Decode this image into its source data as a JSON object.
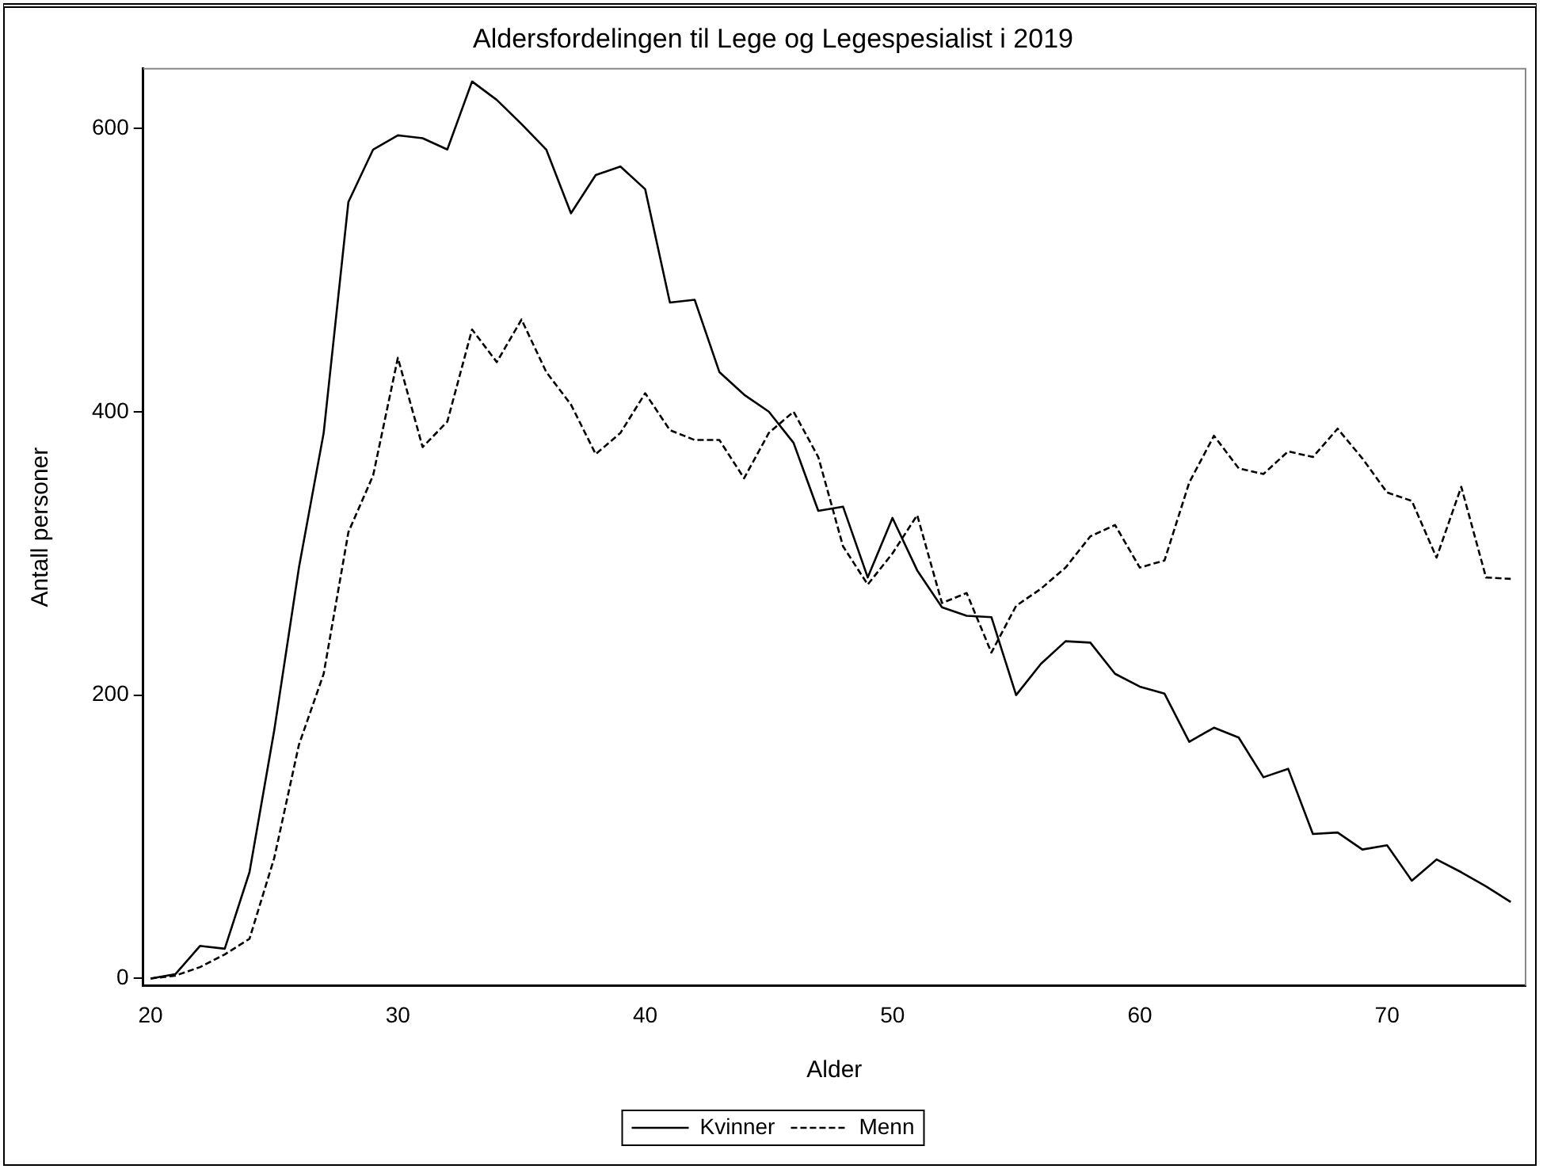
{
  "chart_data": {
    "type": "line",
    "title": "Aldersfordelingen til Lege og Legespesialist i 2019",
    "xlabel": "Alder",
    "ylabel": "Antall personer",
    "x": [
      20,
      21,
      22,
      23,
      24,
      25,
      26,
      27,
      28,
      29,
      30,
      31,
      32,
      33,
      34,
      35,
      36,
      37,
      38,
      39,
      40,
      41,
      42,
      43,
      44,
      45,
      46,
      47,
      48,
      49,
      50,
      51,
      52,
      53,
      54,
      55,
      56,
      57,
      58,
      59,
      60,
      61,
      62,
      63,
      64,
      65,
      66,
      67,
      68,
      69,
      70,
      71,
      72,
      73,
      74,
      75
    ],
    "series": [
      {
        "name": "Kvinner",
        "color": "#000000",
        "line_style": "solid",
        "values": [
          0,
          3,
          23,
          21,
          75,
          175,
          290,
          385,
          548,
          585,
          595,
          593,
          585,
          633,
          620,
          603,
          585,
          540,
          567,
          573,
          557,
          477,
          479,
          428,
          412,
          400,
          378,
          330,
          333,
          283,
          325,
          288,
          262,
          256,
          255,
          200,
          222,
          238,
          237,
          215,
          206,
          201,
          167,
          177,
          170,
          142,
          148,
          102,
          103,
          91,
          94,
          69,
          84,
          75,
          65,
          54
        ]
      },
      {
        "name": "Menn",
        "color": "#000000",
        "line_style": "dashed",
        "values": [
          0,
          2,
          8,
          17,
          28,
          85,
          165,
          215,
          315,
          355,
          438,
          375,
          393,
          458,
          435,
          465,
          428,
          405,
          370,
          385,
          413,
          387,
          380,
          380,
          353,
          385,
          400,
          368,
          305,
          278,
          300,
          327,
          265,
          272,
          230,
          263,
          275,
          290,
          312,
          320,
          290,
          295,
          350,
          383,
          360,
          356,
          372,
          368,
          388,
          367,
          343,
          337,
          297,
          347,
          283,
          282
        ]
      }
    ],
    "xlim": [
      19.7,
      75.6
    ],
    "xticks": [
      20,
      30,
      40,
      50,
      60,
      70
    ],
    "ylim": [
      -5,
      642
    ],
    "yticks": [
      0,
      200,
      400,
      600
    ],
    "grid": false,
    "legend": "bottom",
    "marker": "none"
  }
}
